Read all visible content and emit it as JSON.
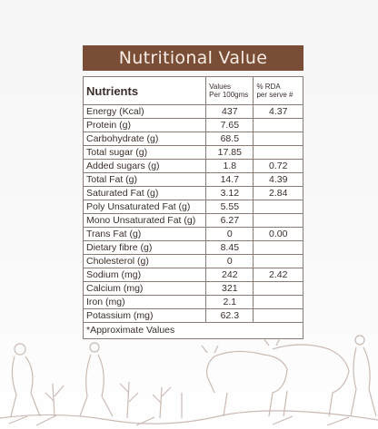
{
  "title": "Nutritional Value",
  "headers": {
    "nutrients": "Nutrients",
    "values": "Values",
    "values_sub": "Per 100gms",
    "rda": "% RDA",
    "rda_sub": "per serve #"
  },
  "rows": [
    {
      "name": "Energy (Kcal)",
      "value": "437",
      "rda": "4.37"
    },
    {
      "name": "Protein (g)",
      "value": "7.65",
      "rda": ""
    },
    {
      "name": "Carbohydrate (g)",
      "value": "68.5",
      "rda": ""
    },
    {
      "name": "Total sugar (g)",
      "value": "17.85",
      "rda": ""
    },
    {
      "name": "Added sugars (g)",
      "value": "1.8",
      "rda": "0.72"
    },
    {
      "name": "Total Fat (g)",
      "value": "14.7",
      "rda": "4.39"
    },
    {
      "name": "Saturated Fat (g)",
      "value": "3.12",
      "rda": "2.84"
    },
    {
      "name": "Poly Unsaturated Fat (g)",
      "value": "5.55",
      "rda": ""
    },
    {
      "name": "Mono Unsaturated Fat (g)",
      "value": "6.27",
      "rda": ""
    },
    {
      "name": "Trans Fat  (g)",
      "value": "0",
      "rda": "0.00"
    },
    {
      "name": "Dietary fibre (g)",
      "value": "8.45",
      "rda": ""
    },
    {
      "name": "Cholesterol (g)",
      "value": "0",
      "rda": ""
    },
    {
      "name": "Sodium (mg)",
      "value": "242",
      "rda": "2.42"
    },
    {
      "name": "Calcium (mg)",
      "value": "321",
      "rda": ""
    },
    {
      "name": "Iron (mg)",
      "value": "2.1",
      "rda": ""
    },
    {
      "name": "Potassium (mg)",
      "value": "62.3",
      "rda": ""
    }
  ],
  "footnote": "*Approximate Values",
  "colors": {
    "title_bg": "#7a4d36",
    "title_text": "#f7ece4",
    "illustration": "#b9a49a"
  }
}
